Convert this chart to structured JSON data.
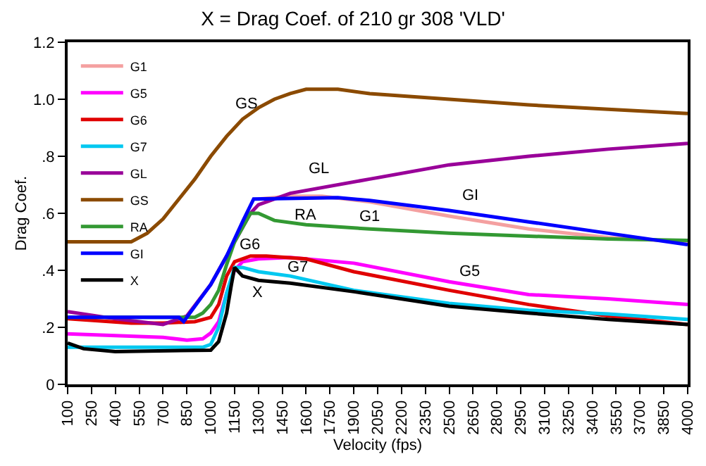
{
  "chart_data": {
    "type": "line",
    "title": "X = Drag Coef. of 210 gr 308 'VLD'",
    "xlabel": "Velocity (fps)",
    "ylabel": "Drag Coef.",
    "xlim": [
      100,
      4000
    ],
    "xticks": [
      100,
      250,
      400,
      550,
      700,
      850,
      1000,
      1150,
      1300,
      1450,
      1600,
      1750,
      1900,
      2050,
      2200,
      2350,
      2500,
      2650,
      2800,
      2950,
      3100,
      3250,
      3400,
      3550,
      3700,
      3850,
      4000
    ],
    "ylim": [
      0,
      1.2
    ],
    "yticks": [
      0,
      {
        "value": 0.2,
        "label": ".2"
      },
      {
        "value": 0.4,
        "label": ".4"
      },
      {
        "value": 0.6,
        "label": ".6"
      },
      {
        "value": 0.8,
        "label": ".8"
      },
      {
        "value": 1.0,
        "label": "1.0"
      },
      {
        "value": 1.2,
        "label": "1.2"
      }
    ],
    "legend": "top left",
    "marker": "none",
    "line_style": "solid",
    "series": [
      {
        "name": "G1",
        "color": "#f4a0a0",
        "x": [
          1300,
          1500,
          1700,
          2000,
          2500,
          3000,
          3500,
          4000
        ],
        "values": [
          0.65,
          0.66,
          0.66,
          0.64,
          0.59,
          0.545,
          0.515,
          0.5
        ]
      },
      {
        "name": "G5",
        "color": "#ff00ff",
        "x": [
          100,
          700,
          850,
          950,
          1000,
          1050,
          1100,
          1150,
          1200,
          1300,
          1500,
          1900,
          2500,
          3000,
          3500,
          4000
        ],
        "values": [
          0.177,
          0.165,
          0.155,
          0.16,
          0.18,
          0.22,
          0.32,
          0.4,
          0.43,
          0.44,
          0.445,
          0.425,
          0.36,
          0.315,
          0.3,
          0.28
        ]
      },
      {
        "name": "G6",
        "color": "#e00000",
        "x": [
          100,
          500,
          700,
          900,
          1000,
          1050,
          1100,
          1150,
          1250,
          1350,
          1600,
          1900,
          2500,
          3000,
          3500,
          4000
        ],
        "values": [
          0.23,
          0.215,
          0.215,
          0.22,
          0.235,
          0.28,
          0.38,
          0.43,
          0.45,
          0.45,
          0.44,
          0.395,
          0.33,
          0.28,
          0.24,
          0.21
        ]
      },
      {
        "name": "G7",
        "color": "#00c8f0",
        "x": [
          100,
          950,
          1000,
          1050,
          1100,
          1150,
          1200,
          1300,
          1500,
          1900,
          2500,
          3000,
          3500,
          4000
        ],
        "values": [
          0.13,
          0.13,
          0.14,
          0.2,
          0.32,
          0.41,
          0.41,
          0.395,
          0.38,
          0.33,
          0.284,
          0.26,
          0.247,
          0.228
        ]
      },
      {
        "name": "GL",
        "color": "#990099",
        "x": [
          100,
          400,
          700,
          850,
          1000,
          1150,
          1250,
          1300,
          1500,
          2000,
          2500,
          3000,
          3500,
          4000
        ],
        "values": [
          0.255,
          0.23,
          0.21,
          0.24,
          0.35,
          0.5,
          0.6,
          0.63,
          0.67,
          0.72,
          0.77,
          0.8,
          0.825,
          0.845
        ]
      },
      {
        "name": "GS",
        "color": "#8b4a00",
        "x": [
          100,
          500,
          600,
          700,
          800,
          900,
          1000,
          1100,
          1200,
          1300,
          1400,
          1500,
          1600,
          1800,
          2000,
          2500,
          3000,
          3500,
          4000
        ],
        "values": [
          0.5,
          0.5,
          0.53,
          0.58,
          0.65,
          0.72,
          0.8,
          0.87,
          0.93,
          0.97,
          1.0,
          1.02,
          1.035,
          1.035,
          1.02,
          1.0,
          0.98,
          0.965,
          0.95
        ]
      },
      {
        "name": "RA",
        "color": "#339933",
        "x": [
          100,
          900,
          950,
          1000,
          1050,
          1100,
          1150,
          1250,
          1300,
          1400,
          1600,
          2000,
          2500,
          3000,
          3500,
          4000
        ],
        "values": [
          0.235,
          0.235,
          0.25,
          0.28,
          0.33,
          0.42,
          0.5,
          0.6,
          0.6,
          0.575,
          0.56,
          0.545,
          0.53,
          0.52,
          0.51,
          0.505
        ]
      },
      {
        "name": "GI",
        "color": "#0000ff",
        "x": [
          100,
          800,
          830,
          1000,
          1100,
          1200,
          1270,
          1800,
          2000,
          2500,
          3000,
          3500,
          4000
        ],
        "values": [
          0.235,
          0.235,
          0.22,
          0.35,
          0.45,
          0.57,
          0.65,
          0.655,
          0.645,
          0.61,
          0.57,
          0.53,
          0.49
        ]
      },
      {
        "name": "X",
        "color": "#000000",
        "x": [
          100,
          200,
          400,
          1000,
          1050,
          1100,
          1130,
          1150,
          1200,
          1300,
          1500,
          1900,
          2500,
          3000,
          3500,
          4000
        ],
        "values": [
          0.145,
          0.125,
          0.115,
          0.12,
          0.15,
          0.25,
          0.35,
          0.41,
          0.38,
          0.365,
          0.355,
          0.325,
          0.274,
          0.25,
          0.228,
          0.21
        ]
      }
    ]
  }
}
